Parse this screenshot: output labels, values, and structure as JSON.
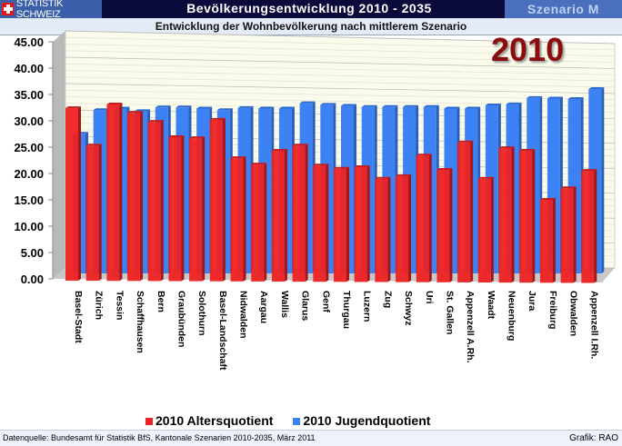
{
  "header": {
    "logo_text": "STATISTIK SCHWEIZ",
    "title": "Bevölkerungsentwicklung 2010 - 2035",
    "scenario": "Szenario M"
  },
  "subtitle": "Entwicklung der Wohnbevölkerung nach mittlerem Szenario",
  "footer": {
    "source": "Datenquelle: Bundesamt für Statistik BfS, Kantonale Szenarien 2010-2035, März  2011",
    "credit": "Grafik: RAO"
  },
  "chart_data": {
    "type": "bar",
    "title": "2010",
    "categories": [
      "Basel-Stadt",
      "Zürich",
      "Tessin",
      "Schaffhausen",
      "Bern",
      "Graubünden",
      "Solothurn",
      "Basel-Landschaft",
      "Nidwalden",
      "Aargau",
      "Wallis",
      "Glarus",
      "Genf",
      "Thurgau",
      "Luzern",
      "Zug",
      "Schwyz",
      "Uri",
      "St. Gallen",
      "Appenzell A.Rh.",
      "Waadt",
      "Neuenburg",
      "Jura",
      "Freiburg",
      "Obwalden",
      "Appenzell I.Rh."
    ],
    "series": [
      {
        "name": "2010 Altersquotient",
        "color": "#ee2222",
        "values": [
          32.4,
          25.3,
          33.1,
          31.5,
          29.8,
          26.9,
          26.7,
          30.2,
          22.9,
          21.7,
          24.3,
          25.3,
          21.5,
          20.9,
          21.2,
          19.0,
          19.5,
          23.4,
          20.7,
          25.9,
          19.0,
          24.8,
          24.3,
          15.0,
          17.2,
          20.5
        ]
      },
      {
        "name": "2010 Jugendquotient",
        "color": "#3d82f5",
        "values": [
          26.5,
          31.0,
          31.3,
          30.8,
          31.5,
          31.5,
          31.3,
          31.0,
          31.4,
          31.3,
          31.3,
          32.3,
          32.0,
          31.8,
          31.6,
          31.6,
          31.6,
          31.6,
          31.3,
          31.3,
          31.9,
          32.1,
          33.3,
          33.2,
          33.1,
          35.0
        ]
      }
    ],
    "yticks": [
      "0.00",
      "5.00",
      "10.00",
      "15.00",
      "20.00",
      "25.00",
      "30.00",
      "35.00",
      "40.00",
      "45.00"
    ],
    "ylim": [
      0,
      45
    ],
    "legend": "bottom"
  }
}
